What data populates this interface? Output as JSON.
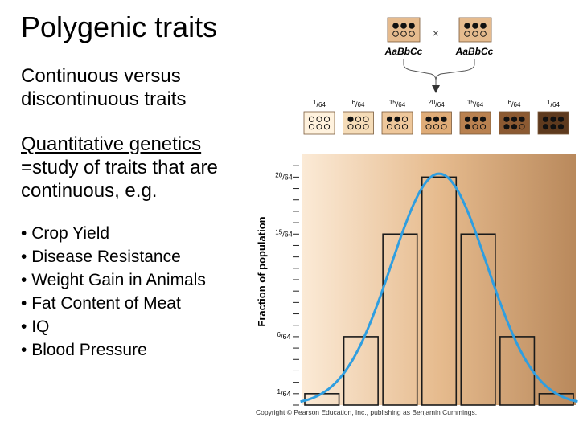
{
  "slide": {
    "title": "Polygenic traits",
    "subtitle": "Continuous versus discontinuous traits",
    "definition_heading": "Quantitative genetics",
    "definition_body": "=study of traits that are continuous, e.g.",
    "bullets": [
      "Crop Yield",
      "Disease Resistance",
      "Weight Gain in Animals",
      "Fat Content of Meat",
      "IQ",
      "Blood Pressure"
    ]
  },
  "cross": {
    "parent_left": "AaBbCc",
    "parent_right": "AaBbCc",
    "cross_symbol": "×",
    "offspring_classes": [
      {
        "freq": "1/64",
        "dark_alleles": 0,
        "color": "#fff2de"
      },
      {
        "freq": "6/64",
        "dark_alleles": 1,
        "color": "#f5dcb8"
      },
      {
        "freq": "15/64",
        "dark_alleles": 2,
        "color": "#eec79b"
      },
      {
        "freq": "20/64",
        "dark_alleles": 3,
        "color": "#dfac78"
      },
      {
        "freq": "15/64",
        "dark_alleles": 4,
        "color": "#b98150"
      },
      {
        "freq": "6/64",
        "dark_alleles": 5,
        "color": "#8c5a32"
      },
      {
        "freq": "1/64",
        "dark_alleles": 6,
        "color": "#5e3a1e"
      }
    ]
  },
  "chart_data": {
    "type": "bar",
    "ylabel": "Fraction of population",
    "yunit": "/64",
    "categories": [
      "0",
      "1",
      "2",
      "3",
      "4",
      "5",
      "6"
    ],
    "values": [
      1,
      6,
      15,
      20,
      15,
      6,
      1
    ],
    "ytick_labels": [
      1,
      6,
      15,
      20
    ],
    "ylim": [
      0,
      22
    ],
    "curve": "normal distribution overlay",
    "curve_color": "#2f9ee0",
    "gradient_colors": [
      "#fbead6",
      "#e6bb8e",
      "#b9895c"
    ]
  },
  "credit": "Copyright © Pearson Education, Inc., publishing as Benjamin Cummings."
}
